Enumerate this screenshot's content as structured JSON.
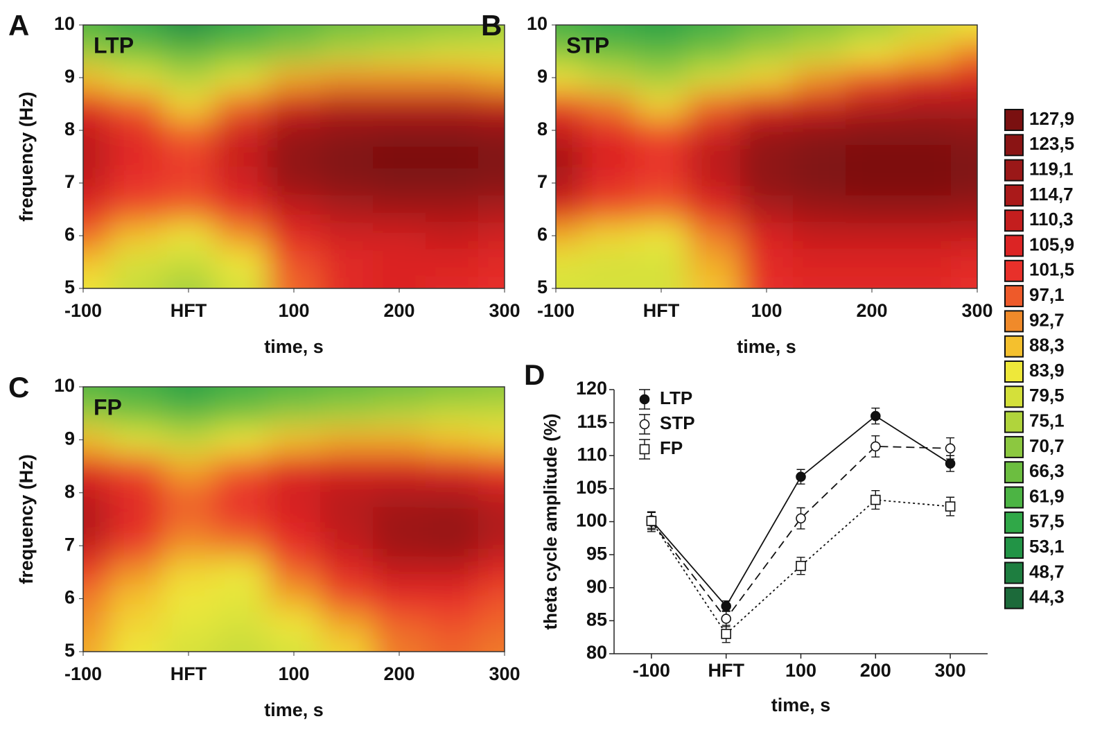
{
  "chart_data": [
    {
      "type": "heatmap",
      "panel": "A",
      "label": "LTP",
      "xlabel": "time, s",
      "ylabel": "frequency (Hz)",
      "x": [
        -100,
        -50,
        0,
        50,
        100,
        150,
        200,
        250,
        300
      ],
      "y": [
        5,
        5.5,
        6,
        6.5,
        7,
        7.5,
        8,
        8.5,
        9,
        9.5,
        10
      ],
      "z": [
        [
          84,
          78,
          74,
          80,
          96,
          104,
          106,
          104,
          102
        ],
        [
          88,
          80,
          78,
          84,
          98,
          104,
          106,
          106,
          104
        ],
        [
          96,
          88,
          84,
          92,
          104,
          108,
          108,
          110,
          108
        ],
        [
          104,
          98,
          96,
          102,
          110,
          114,
          116,
          116,
          114
        ],
        [
          110,
          102,
          100,
          108,
          120,
          124,
          126,
          126,
          124
        ],
        [
          112,
          104,
          100,
          110,
          122,
          126,
          128,
          128,
          126
        ],
        [
          110,
          104,
          96,
          108,
          118,
          122,
          124,
          124,
          122
        ],
        [
          104,
          96,
          86,
          96,
          108,
          112,
          112,
          112,
          110
        ],
        [
          88,
          82,
          76,
          82,
          90,
          92,
          92,
          92,
          90
        ],
        [
          72,
          68,
          64,
          68,
          72,
          76,
          78,
          80,
          80
        ],
        [
          62,
          58,
          52,
          58,
          62,
          66,
          68,
          70,
          72
        ]
      ],
      "xlim": [
        -100,
        300
      ],
      "xticks": [
        -100,
        {
          "value": 0,
          "label": "HFT"
        },
        100,
        200,
        300
      ],
      "ylim": [
        5,
        10
      ],
      "yticks": [
        5,
        6,
        7,
        8,
        9,
        10
      ]
    },
    {
      "type": "heatmap",
      "panel": "B",
      "label": "STP",
      "xlabel": "time, s",
      "ylabel": null,
      "x": [
        -100,
        -50,
        0,
        50,
        100,
        150,
        200,
        250,
        300
      ],
      "y": [
        5,
        5.5,
        6,
        6.5,
        7,
        7.5,
        8,
        8.5,
        9,
        9.5,
        10
      ],
      "z": [
        [
          80,
          80,
          80,
          88,
          102,
          104,
          104,
          104,
          102
        ],
        [
          82,
          80,
          80,
          90,
          104,
          106,
          106,
          106,
          104
        ],
        [
          90,
          86,
          84,
          94,
          106,
          110,
          110,
          110,
          110
        ],
        [
          106,
          98,
          96,
          104,
          114,
          118,
          120,
          120,
          118
        ],
        [
          114,
          104,
          100,
          110,
          122,
          126,
          127,
          127,
          126
        ],
        [
          116,
          106,
          102,
          112,
          122,
          126,
          127,
          127,
          126
        ],
        [
          110,
          104,
          98,
          108,
          118,
          122,
          124,
          124,
          122
        ],
        [
          100,
          94,
          86,
          96,
          104,
          108,
          112,
          114,
          114
        ],
        [
          84,
          78,
          74,
          80,
          86,
          92,
          98,
          104,
          106
        ],
        [
          70,
          66,
          64,
          68,
          74,
          78,
          84,
          88,
          94
        ],
        [
          60,
          58,
          56,
          60,
          64,
          68,
          72,
          78,
          84
        ]
      ],
      "xlim": [
        -100,
        300
      ],
      "xticks": [
        -100,
        {
          "value": 0,
          "label": "HFT"
        },
        100,
        200,
        300
      ],
      "ylim": [
        5,
        10
      ],
      "yticks": [
        5,
        6,
        7,
        8,
        9,
        10
      ]
    },
    {
      "type": "heatmap",
      "panel": "C",
      "label": "FP",
      "xlabel": "time, s",
      "ylabel": "frequency (Hz)",
      "x": [
        -100,
        -50,
        0,
        50,
        100,
        150,
        200,
        250,
        300
      ],
      "y": [
        5,
        5.5,
        6,
        6.5,
        7,
        7.5,
        8,
        8.5,
        9,
        9.5,
        10
      ],
      "z": [
        [
          90,
          84,
          80,
          78,
          80,
          86,
          94,
          96,
          94
        ],
        [
          92,
          86,
          82,
          80,
          84,
          90,
          96,
          98,
          96
        ],
        [
          94,
          88,
          84,
          82,
          90,
          98,
          102,
          102,
          98
        ],
        [
          100,
          92,
          86,
          84,
          96,
          104,
          110,
          110,
          104
        ],
        [
          110,
          100,
          92,
          94,
          102,
          110,
          118,
          120,
          112
        ],
        [
          114,
          104,
          96,
          100,
          106,
          112,
          118,
          120,
          114
        ],
        [
          110,
          104,
          96,
          102,
          108,
          112,
          114,
          114,
          110
        ],
        [
          104,
          98,
          90,
          96,
          104,
          106,
          106,
          104,
          100
        ],
        [
          88,
          82,
          78,
          84,
          88,
          90,
          90,
          88,
          86
        ],
        [
          72,
          68,
          64,
          68,
          72,
          74,
          76,
          78,
          78
        ],
        [
          62,
          60,
          56,
          60,
          62,
          64,
          66,
          68,
          70
        ]
      ],
      "xlim": [
        -100,
        300
      ],
      "xticks": [
        -100,
        {
          "value": 0,
          "label": "HFT"
        },
        100,
        200,
        300
      ],
      "ylim": [
        5,
        10
      ],
      "yticks": [
        5,
        6,
        7,
        8,
        9,
        10
      ]
    },
    {
      "type": "line",
      "panel": "D",
      "xlabel": "time, s",
      "ylabel": "theta cycle amplitude (%)",
      "categories": [
        "-100",
        "HFT",
        "100",
        "200",
        "300"
      ],
      "series": [
        {
          "name": "LTP",
          "color": "#111111",
          "marker": "circle-filled",
          "dash": "solid",
          "values": [
            100.2,
            87.2,
            106.8,
            116.0,
            108.8
          ],
          "errors": [
            1.2,
            0.8,
            1.1,
            1.2,
            1.2
          ]
        },
        {
          "name": "STP",
          "color": "#111111",
          "marker": "circle-open",
          "dash": "dashed",
          "values": [
            100.0,
            85.3,
            100.5,
            111.4,
            111.1
          ],
          "errors": [
            1.5,
            1.2,
            1.6,
            1.6,
            1.6
          ]
        },
        {
          "name": "FP",
          "color": "#111111",
          "marker": "square-open",
          "dash": "dotted",
          "values": [
            100.1,
            83.0,
            93.3,
            103.3,
            102.3
          ],
          "errors": [
            1.3,
            1.3,
            1.3,
            1.4,
            1.4
          ]
        }
      ],
      "ylim": [
        80,
        120
      ],
      "yticks": [
        80,
        85,
        90,
        95,
        100,
        105,
        110,
        115,
        120
      ]
    }
  ],
  "colorbar": {
    "levels": [
      {
        "value": 127.9,
        "label": "127,9"
      },
      {
        "value": 123.5,
        "label": "123,5"
      },
      {
        "value": 119.1,
        "label": "119,1"
      },
      {
        "value": 114.7,
        "label": "114,7"
      },
      {
        "value": 110.3,
        "label": "110,3"
      },
      {
        "value": 105.9,
        "label": "105,9"
      },
      {
        "value": 101.5,
        "label": "101,5"
      },
      {
        "value": 97.1,
        "label": "97,1"
      },
      {
        "value": 92.7,
        "label": "92,7"
      },
      {
        "value": 88.3,
        "label": "88,3"
      },
      {
        "value": 83.9,
        "label": "83,9"
      },
      {
        "value": 79.5,
        "label": "79,5"
      },
      {
        "value": 75.1,
        "label": "75,1"
      },
      {
        "value": 70.7,
        "label": "70,7"
      },
      {
        "value": 66.3,
        "label": "66,3"
      },
      {
        "value": 61.9,
        "label": "61,9"
      },
      {
        "value": 57.5,
        "label": "57,5"
      },
      {
        "value": 53.1,
        "label": "53,1"
      },
      {
        "value": 48.7,
        "label": "48,7"
      },
      {
        "value": 44.3,
        "label": "44,3"
      }
    ],
    "colors": [
      "#7a1010",
      "#8a1414",
      "#9a1818",
      "#aa1a1a",
      "#c41e1e",
      "#dc2424",
      "#e8302a",
      "#ee5a2a",
      "#f08a2a",
      "#f4c02e",
      "#eee83a",
      "#d4e03a",
      "#b0d43c",
      "#8cc840",
      "#6cbe40",
      "#4cb444",
      "#30a848",
      "#229446",
      "#1e7e40",
      "#1c6a3a"
    ]
  }
}
